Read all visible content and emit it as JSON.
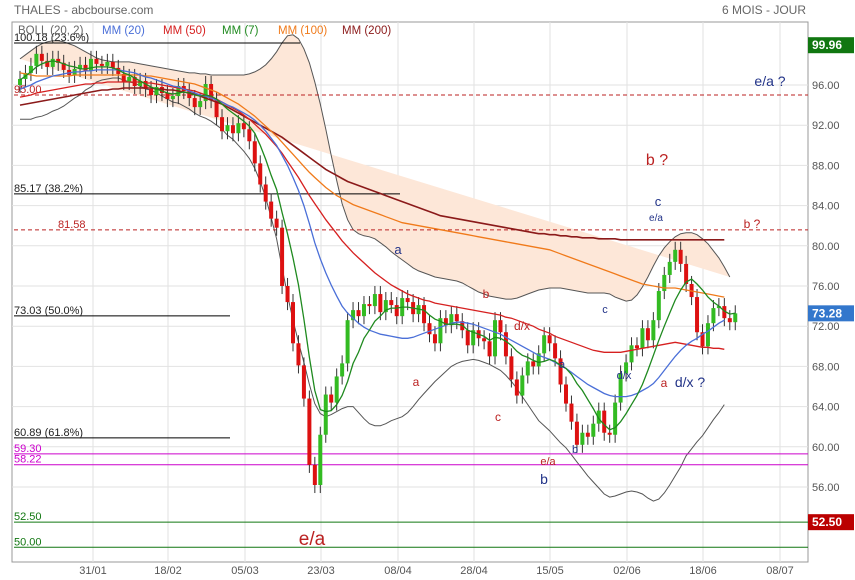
{
  "header": {
    "title": "THALES - abcbourse.com",
    "period": "6 MOIS - JOUR"
  },
  "indicators": [
    {
      "label": "BOLL (20, 2)",
      "color": "#666666"
    },
    {
      "label": "MM (20)",
      "color": "#4a6fd8"
    },
    {
      "label": "MM (50)",
      "color": "#d62020"
    },
    {
      "label": "MM (7)",
      "color": "#1f8a1f"
    },
    {
      "label": "MM (100)",
      "color": "#f07a1a"
    },
    {
      "label": "MM (200)",
      "color": "#8b1a1a"
    }
  ],
  "colors": {
    "up": "#33bb22",
    "down": "#dd1111",
    "band_fill": "#fde7d8",
    "last_price_badge": "#3377cc",
    "level_high_badge": "#117711",
    "level_low_badge": "#bb0000"
  },
  "chart_data": {
    "type": "candlestick",
    "ylim": [
      49,
      101
    ],
    "y_ticks": [
      "96.00",
      "92.00",
      "88.00",
      "84.00",
      "80.00",
      "76.00",
      "72.00",
      "68.00",
      "64.00",
      "60.00",
      "56.00"
    ],
    "x_ticks": [
      "31/01",
      "18/02",
      "05/03",
      "23/03",
      "08/04",
      "28/04",
      "15/05",
      "02/06",
      "18/06",
      "08/07"
    ],
    "last_price": "73.28",
    "right_badges": [
      {
        "label": "99.96",
        "y": 99.96,
        "kind": "high"
      },
      {
        "label": "73.28",
        "y": 73.28,
        "kind": "last"
      },
      {
        "label": "52.50",
        "y": 52.5,
        "kind": "low"
      }
    ],
    "fib_levels": [
      {
        "label": "100.18 (23.6%)",
        "y": 100.18,
        "color": "#000000"
      },
      {
        "label": "95.00",
        "y": 95.0,
        "color": "#bb2222"
      },
      {
        "label": "85.17 (38.2%)",
        "y": 85.17,
        "color": "#000000"
      },
      {
        "label": "81.58",
        "y": 81.58,
        "color": "#bb2222"
      },
      {
        "label": "73.03 (50.0%)",
        "y": 73.03,
        "color": "#000000"
      },
      {
        "label": "60.89 (61.8%)",
        "y": 60.89,
        "color": "#000000"
      },
      {
        "label": "59.30",
        "y": 59.3,
        "color": "#cc00cc"
      },
      {
        "label": "58.22",
        "y": 58.22,
        "color": "#cc00cc"
      },
      {
        "label": "52.50",
        "y": 52.5,
        "color": "#117711"
      },
      {
        "label": "50.00",
        "y": 50.0,
        "color": "#117711"
      }
    ],
    "annotations": [
      {
        "text": "e/a ?",
        "color": "#223388"
      },
      {
        "text": "b ?",
        "color": "#bb2222"
      },
      {
        "text": "b ?",
        "color": "#bb2222"
      },
      {
        "text": "c",
        "color": "#223388"
      },
      {
        "text": "e/a",
        "color": "#223388"
      },
      {
        "text": "a",
        "color": "#223388"
      },
      {
        "text": "b",
        "color": "#bb2222"
      },
      {
        "text": "d/x",
        "color": "#bb2222"
      },
      {
        "text": "c",
        "color": "#223388"
      },
      {
        "text": "a",
        "color": "#223388"
      },
      {
        "text": "d/x",
        "color": "#223388"
      },
      {
        "text": "a",
        "color": "#bb2222"
      },
      {
        "text": "d/x ?",
        "color": "#223388"
      },
      {
        "text": "a",
        "color": "#bb2222"
      },
      {
        "text": "c",
        "color": "#bb2222"
      },
      {
        "text": "e/a",
        "color": "#bb2222"
      },
      {
        "text": "b",
        "color": "#223388"
      },
      {
        "text": "b",
        "color": "#223388"
      },
      {
        "text": "e/a",
        "color": "#bb2222"
      }
    ],
    "closes": [
      96.6,
      97.2,
      97.9,
      99.1,
      98.4,
      97.8,
      98.6,
      98.2,
      97.5,
      97.0,
      97.6,
      98.0,
      97.4,
      98.6,
      98.1,
      97.9,
      98.3,
      97.7,
      97.1,
      96.3,
      96.8,
      95.9,
      96.4,
      95.6,
      95.0,
      95.8,
      95.2,
      94.6,
      94.9,
      95.9,
      95.4,
      94.7,
      93.8,
      94.4,
      96.1,
      94.5,
      92.8,
      91.4,
      92.0,
      91.2,
      92.2,
      91.6,
      90.4,
      88.2,
      86.1,
      84.4,
      82.7,
      81.8,
      76.0,
      74.4,
      70.3,
      68.1,
      64.8,
      58.2,
      56.2,
      61.2,
      65.2,
      64.4,
      67.0,
      68.3,
      72.6,
      73.6,
      73.0,
      74.2,
      74.0,
      75.2,
      73.4,
      74.6,
      74.1,
      73.0,
      74.8,
      74.4,
      73.2,
      74.1,
      72.3,
      71.2,
      70.3,
      72.8,
      72.1,
      73.2,
      72.5,
      71.6,
      70.1,
      71.6,
      70.8,
      70.5,
      69.0,
      72.6,
      71.4,
      69.0,
      66.7,
      65.1,
      67.1,
      68.5,
      68.0,
      69.3,
      71.1,
      70.3,
      68.8,
      66.2,
      64.3,
      62.5,
      60.2,
      61.4,
      61.0,
      62.3,
      63.6,
      61.4,
      61.2,
      64.4,
      67.3,
      68.4,
      70.1,
      69.8,
      71.8,
      70.6,
      72.6,
      75.5,
      77.1,
      78.4,
      79.6,
      78.2,
      76.2,
      74.9,
      71.4,
      70.0,
      72.3,
      73.8,
      74.0,
      72.8,
      72.4,
      73.28
    ],
    "mm7": [
      96.5,
      96.9,
      97.3,
      97.8,
      98.1,
      98.3,
      98.4,
      98.3,
      98.1,
      97.9,
      97.8,
      97.6,
      97.6,
      97.7,
      97.8,
      97.8,
      97.8,
      97.7,
      97.5,
      97.2,
      97.0,
      96.7,
      96.4,
      96.1,
      95.8,
      95.6,
      95.4,
      95.2,
      95.1,
      95.2,
      95.3,
      95.2,
      95.0,
      94.9,
      95.0,
      94.9,
      94.6,
      94.1,
      93.6,
      93.2,
      92.8,
      92.4,
      91.9,
      91.2,
      90.0,
      88.6,
      87.0,
      85.6,
      83.3,
      81.2,
      78.8,
      76.1,
      72.7,
      68.9,
      65.6,
      63.7,
      63.5,
      63.6,
      64.2,
      65.1,
      66.5,
      68.3,
      69.4,
      70.8,
      71.6,
      72.5,
      73.0,
      73.6,
      73.8,
      73.8,
      73.9,
      73.9,
      73.8,
      73.7,
      73.6,
      73.1,
      72.7,
      72.5,
      72.2,
      72.2,
      72.2,
      72.1,
      71.6,
      71.4,
      71.2,
      71.0,
      70.6,
      70.9,
      70.8,
      70.5,
      70.1,
      69.5,
      69.1,
      68.9,
      68.6,
      68.4,
      68.5,
      68.7,
      68.5,
      68.1,
      67.8,
      67.2,
      66.3,
      65.6,
      64.7,
      63.8,
      62.8,
      62.2,
      61.7,
      61.9,
      62.5,
      63.3,
      64.2,
      65.1,
      66.2,
      67.6,
      69.1,
      70.6,
      72.0,
      73.3,
      74.6,
      75.6,
      76.4,
      76.7,
      76.2,
      75.6,
      74.9,
      74.4,
      74.0,
      73.5,
      73.2,
      73.3
    ],
    "mm20": [
      95.6,
      95.8,
      96.0,
      96.3,
      96.5,
      96.7,
      96.9,
      97.0,
      97.1,
      97.2,
      97.3,
      97.3,
      97.4,
      97.4,
      97.5,
      97.5,
      97.5,
      97.5,
      97.5,
      97.4,
      97.3,
      97.2,
      97.0,
      96.8,
      96.7,
      96.5,
      96.3,
      96.1,
      95.9,
      95.8,
      95.6,
      95.4,
      95.2,
      95.0,
      94.9,
      94.7,
      94.5,
      94.3,
      94.0,
      93.8,
      93.5,
      93.2,
      92.9,
      92.5,
      92.0,
      91.4,
      90.7,
      90.0,
      89.0,
      88.0,
      86.8,
      85.5,
      84.0,
      82.2,
      80.3,
      78.7,
      77.3,
      76.1,
      75.0,
      74.0,
      73.3,
      72.8,
      72.3,
      71.9,
      71.6,
      71.4,
      71.2,
      71.1,
      71.0,
      70.9,
      70.8,
      70.8,
      70.9,
      71.1,
      71.3,
      71.5,
      71.7,
      71.9,
      72.1,
      72.3,
      72.4,
      72.4,
      72.3,
      72.2,
      72.0,
      71.8,
      71.6,
      71.4,
      71.2,
      70.9,
      70.6,
      70.3,
      70.0,
      69.7,
      69.4,
      69.1,
      68.9,
      68.7,
      68.4,
      68.1,
      67.8,
      67.4,
      67.0,
      66.6,
      66.2,
      65.9,
      65.6,
      65.3,
      65.1,
      65.0,
      65.0,
      65.0,
      65.1,
      65.3,
      65.6,
      65.9,
      66.3,
      66.9,
      67.6,
      68.3,
      69.0,
      69.6,
      70.1,
      70.5,
      70.8,
      71.2,
      71.5,
      71.9,
      72.3,
      72.6
    ],
    "mm50": [
      94.8,
      94.9,
      95.0,
      95.2,
      95.3,
      95.4,
      95.5,
      95.6,
      95.7,
      95.8,
      95.9,
      96.0,
      96.1,
      96.1,
      96.2,
      96.2,
      96.3,
      96.3,
      96.3,
      96.3,
      96.3,
      96.3,
      96.3,
      96.2,
      96.2,
      96.1,
      96.0,
      95.9,
      95.8,
      95.7,
      95.6,
      95.5,
      95.4,
      95.2,
      95.0,
      94.8,
      94.6,
      94.3,
      94.0,
      93.7,
      93.4,
      93.0,
      92.6,
      92.1,
      91.6,
      91.1,
      90.5,
      89.9,
      89.2,
      88.4,
      87.6,
      86.8,
      85.9,
      85.0,
      84.2,
      83.4,
      82.6,
      81.9,
      81.2,
      80.5,
      79.9,
      79.3,
      78.8,
      78.3,
      77.8,
      77.3,
      76.9,
      76.5,
      76.1,
      75.8,
      75.5,
      75.2,
      75.0,
      74.8,
      74.6,
      74.5,
      74.3,
      74.2,
      74.1,
      74.0,
      73.9,
      73.8,
      73.7,
      73.6,
      73.5,
      73.4,
      73.3,
      73.2,
      73.1,
      72.9,
      72.8,
      72.6,
      72.4,
      72.2,
      72.0,
      71.7,
      71.5,
      71.3,
      71.0,
      70.8,
      70.6,
      70.4,
      70.2,
      70.0,
      69.8,
      69.6,
      69.5,
      69.4,
      69.4,
      69.4,
      69.4,
      69.5,
      69.6,
      69.7,
      69.8,
      69.9,
      70.0,
      70.1,
      70.2,
      70.3,
      70.4,
      70.3,
      70.2,
      70.1,
      70.0,
      69.9,
      69.9,
      69.8,
      69.8,
      69.7
    ],
    "mm100": [
      97.2,
      97.1,
      97.0,
      96.9,
      96.9,
      96.9,
      96.9,
      96.9,
      96.9,
      96.9,
      97.0,
      97.0,
      97.0,
      97.0,
      97.0,
      97.0,
      97.0,
      97.0,
      97.0,
      97.0,
      97.0,
      97.0,
      97.0,
      96.9,
      96.9,
      96.8,
      96.7,
      96.6,
      96.5,
      96.4,
      96.3,
      96.2,
      96.1,
      95.9,
      95.7,
      95.5,
      95.3,
      95.0,
      94.7,
      94.4,
      94.1,
      93.7,
      93.3,
      92.9,
      92.4,
      91.9,
      91.4,
      90.9,
      90.3,
      89.7,
      89.1,
      88.5,
      87.9,
      87.3,
      86.8,
      86.3,
      85.8,
      85.4,
      85.0,
      84.7,
      84.4,
      84.1,
      83.9,
      83.7,
      83.5,
      83.3,
      83.1,
      82.9,
      82.7,
      82.5,
      82.3,
      82.2,
      82.1,
      82.0,
      81.9,
      81.8,
      81.7,
      81.6,
      81.5,
      81.4,
      81.3,
      81.2,
      81.1,
      81.0,
      80.9,
      80.8,
      80.7,
      80.6,
      80.5,
      80.4,
      80.3,
      80.2,
      80.1,
      80.0,
      79.9,
      79.8,
      79.7,
      79.6,
      79.4,
      79.2,
      79.0,
      78.8,
      78.6,
      78.4,
      78.2,
      78.0,
      77.8,
      77.6,
      77.4,
      77.2,
      77.0,
      76.8,
      76.6,
      76.4,
      76.2,
      76.1,
      76.0,
      75.9,
      75.8,
      75.8,
      75.8,
      75.7,
      75.6,
      75.5,
      75.4,
      75.3,
      75.2,
      75.1,
      75.0,
      74.9
    ],
    "mm200": [
      94.0,
      94.1,
      94.2,
      94.3,
      94.4,
      94.5,
      94.6,
      94.7,
      94.8,
      94.9,
      95.0,
      95.1,
      95.2,
      95.3,
      95.4,
      95.5,
      95.5,
      95.6,
      95.6,
      95.7,
      95.7,
      95.7,
      95.7,
      95.7,
      95.7,
      95.6,
      95.6,
      95.5,
      95.5,
      95.4,
      95.3,
      95.2,
      95.1,
      94.9,
      94.7,
      94.5,
      94.3,
      94.1,
      93.8,
      93.5,
      93.2,
      92.9,
      92.6,
      92.3,
      92.0,
      91.7,
      91.4,
      91.1,
      90.8,
      90.4,
      90.0,
      89.6,
      89.2,
      88.8,
      88.4,
      88.0,
      87.6,
      87.3,
      87.0,
      86.7,
      86.4,
      86.2,
      86.0,
      85.8,
      85.6,
      85.4,
      85.2,
      85.0,
      84.8,
      84.6,
      84.4,
      84.2,
      84.0,
      83.8,
      83.6,
      83.4,
      83.2,
      83.0,
      82.9,
      82.8,
      82.7,
      82.6,
      82.5,
      82.4,
      82.3,
      82.2,
      82.1,
      82.0,
      81.9,
      81.8,
      81.7,
      81.6,
      81.5,
      81.4,
      81.3,
      81.2,
      81.2,
      81.1,
      81.1,
      81.0,
      81.0,
      80.9,
      80.9,
      80.8,
      80.8,
      80.8,
      80.7,
      80.7,
      80.7,
      80.7,
      80.6,
      80.6,
      80.6,
      80.6,
      80.6,
      80.6,
      80.6,
      80.6,
      80.6,
      80.6,
      80.6,
      80.6,
      80.6,
      80.6,
      80.6,
      80.6,
      80.6,
      80.6,
      80.6,
      80.6
    ],
    "boll_upper": [
      98.6,
      99.0,
      99.4,
      99.8,
      100.1,
      100.3,
      100.4,
      100.4,
      100.3,
      100.1,
      99.9,
      99.6,
      99.3,
      99.0,
      98.7,
      98.5,
      98.4,
      98.3,
      98.3,
      98.3,
      98.3,
      98.2,
      98.1,
      98.0,
      97.9,
      97.8,
      97.7,
      97.6,
      97.5,
      97.4,
      97.3,
      97.2,
      97.2,
      97.1,
      97.1,
      97.0,
      97.0,
      97.0,
      97.0,
      97.0,
      97.0,
      97.0,
      97.1,
      97.3,
      97.6,
      98.0,
      98.6,
      99.3,
      100.2,
      100.9,
      101.0,
      100.6,
      99.6,
      98.2,
      96.3,
      94.1,
      91.6,
      89.0,
      86.5,
      84.2,
      82.6,
      81.6,
      81.2,
      81.0,
      80.9,
      80.7,
      80.3,
      79.9,
      79.4,
      79.0,
      78.6,
      78.2,
      77.8,
      77.5,
      77.3,
      77.1,
      76.9,
      76.8,
      76.7,
      76.6,
      76.5,
      76.3,
      76.0,
      75.7,
      75.4,
      75.2,
      75.0,
      74.9,
      74.8,
      74.7,
      74.7,
      74.8,
      75.0,
      75.2,
      75.4,
      75.6,
      75.7,
      75.8,
      75.8,
      75.8,
      75.7,
      75.6,
      75.5,
      75.4,
      75.3,
      75.3,
      75.3,
      75.3,
      75.2,
      74.9,
      74.7,
      74.5,
      74.6,
      75.1,
      75.9,
      76.9,
      78.0,
      79.0,
      79.8,
      80.4,
      80.9,
      81.2,
      81.3,
      81.3,
      81.1,
      80.7,
      80.2,
      79.5,
      78.8,
      77.9,
      76.9
    ],
    "boll_lower": [
      92.6,
      92.6,
      92.6,
      92.8,
      92.9,
      93.1,
      93.4,
      93.6,
      93.9,
      94.3,
      94.7,
      95.0,
      95.5,
      95.8,
      96.3,
      96.5,
      96.6,
      96.7,
      96.7,
      96.5,
      96.3,
      96.2,
      95.9,
      95.6,
      95.5,
      95.2,
      94.9,
      94.6,
      94.3,
      94.2,
      93.9,
      93.6,
      93.2,
      92.9,
      92.7,
      92.4,
      92.0,
      91.6,
      91.0,
      90.6,
      90.0,
      89.4,
      88.7,
      87.7,
      86.4,
      84.8,
      82.8,
      80.7,
      77.8,
      75.1,
      72.6,
      70.4,
      68.4,
      66.2,
      64.3,
      63.3,
      63.0,
      63.2,
      63.5,
      63.8,
      64.0,
      64.0,
      63.4,
      62.8,
      62.3,
      62.1,
      62.1,
      62.3,
      62.6,
      62.8,
      63.0,
      63.4,
      64.0,
      64.7,
      65.3,
      65.9,
      66.5,
      67.0,
      67.5,
      68.0,
      68.3,
      68.5,
      68.6,
      68.7,
      68.6,
      68.4,
      68.2,
      67.9,
      67.6,
      67.1,
      66.5,
      65.8,
      65.0,
      64.2,
      63.4,
      62.6,
      62.1,
      61.6,
      61.0,
      60.4,
      59.9,
      59.2,
      58.5,
      57.8,
      57.1,
      56.5,
      55.9,
      55.3,
      55.0,
      55.1,
      55.3,
      55.5,
      55.6,
      55.5,
      55.3,
      54.9,
      54.6,
      54.8,
      55.4,
      56.2,
      57.1,
      58.0,
      59.1,
      59.8,
      60.5,
      61.1,
      61.9,
      62.7,
      63.4,
      64.2
    ]
  }
}
